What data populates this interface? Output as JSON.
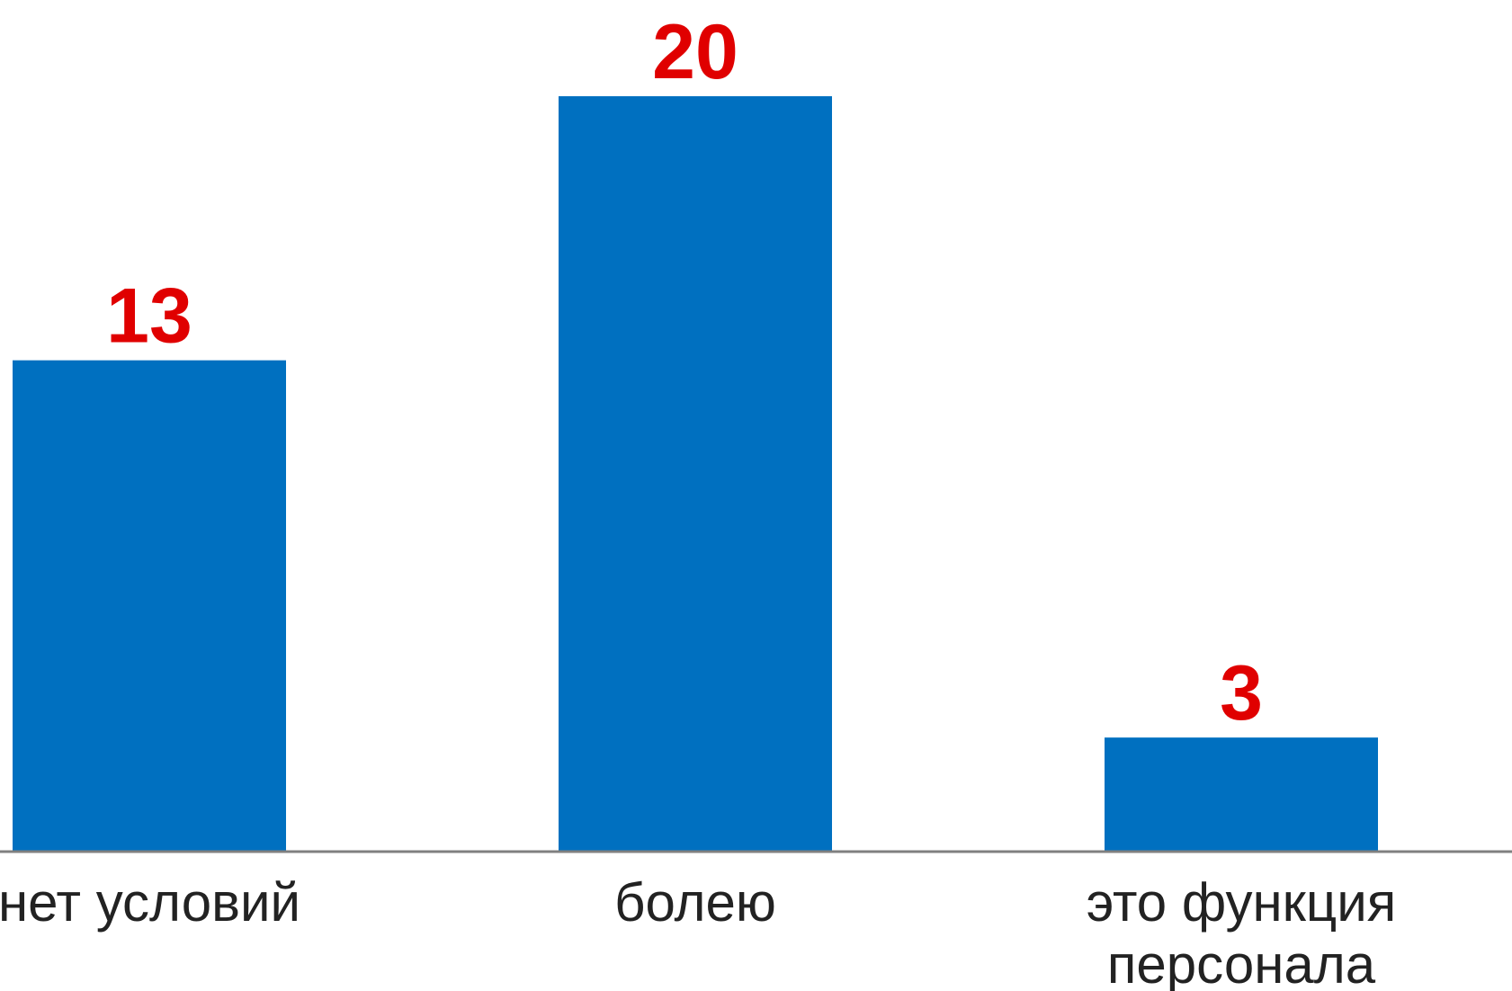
{
  "chart_data": {
    "type": "bar",
    "categories": [
      [
        "нет условий"
      ],
      [
        "болею"
      ],
      [
        "это функция",
        "персонала"
      ]
    ],
    "values": [
      13,
      20,
      3
    ],
    "ylim": [
      0,
      20
    ],
    "grid": false,
    "legend": "none",
    "data_labels": true
  },
  "colors": {
    "bar": "#0070C0",
    "value_label": "#E00000",
    "axis": "#808080",
    "category_label": "#222222"
  }
}
